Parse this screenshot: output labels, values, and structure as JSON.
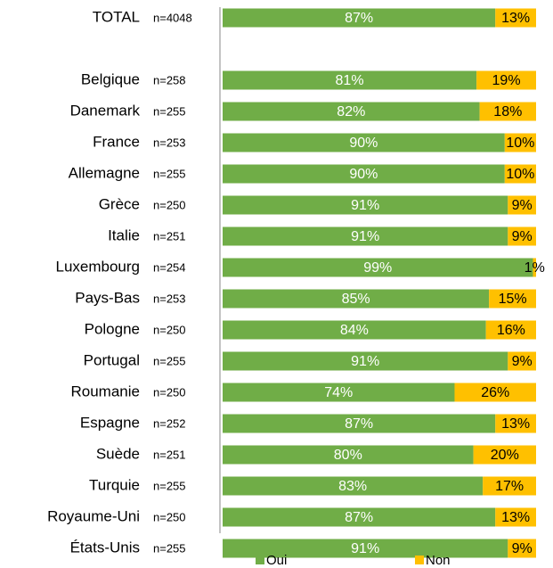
{
  "chart_data": {
    "type": "stacked_bar_horizontal",
    "categories": [
      "TOTAL",
      null,
      "Belgique",
      "Danemark",
      "France",
      "Allemagne",
      "Grèce",
      "Italie",
      "Luxembourg",
      "Pays-Bas",
      "Pologne",
      "Portugal",
      "Roumanie",
      "Espagne",
      "Suède",
      "Turquie",
      "Royaume-Uni",
      "États-Unis"
    ],
    "sample_sizes": [
      "n=4048",
      null,
      "n=258",
      "n=255",
      "n=253",
      "n=255",
      "n=250",
      "n=251",
      "n=254",
      "n=253",
      "n=250",
      "n=255",
      "n=250",
      "n=252",
      "n=251",
      "n=255",
      "n=250",
      "n=255"
    ],
    "series": [
      {
        "name": "Oui",
        "color": "#70ad47",
        "label_color": "#ffffff",
        "values": [
          87,
          null,
          81,
          82,
          90,
          90,
          91,
          91,
          99,
          85,
          84,
          91,
          74,
          87,
          80,
          83,
          87,
          91
        ],
        "value_labels": [
          "87%",
          null,
          "81%",
          "82%",
          "90%",
          "90%",
          "91%",
          "91%",
          "99%",
          "85%",
          "84%",
          "91%",
          "74%",
          "87%",
          "80%",
          "83%",
          "87%",
          "91%"
        ]
      },
      {
        "name": "Non",
        "color": "#ffc000",
        "label_color": "#000000",
        "values": [
          13,
          null,
          19,
          18,
          10,
          10,
          9,
          9,
          1,
          15,
          16,
          9,
          26,
          13,
          20,
          17,
          13,
          9
        ],
        "value_labels": [
          "13%",
          null,
          "19%",
          "18%",
          "10%",
          "10%",
          "9%",
          "9%",
          "1%",
          "15%",
          "16%",
          "9%",
          "26%",
          "13%",
          "20%",
          "17%",
          "13%",
          "9%"
        ]
      }
    ],
    "xlim": [
      0,
      100
    ],
    "legend": "bottom"
  }
}
